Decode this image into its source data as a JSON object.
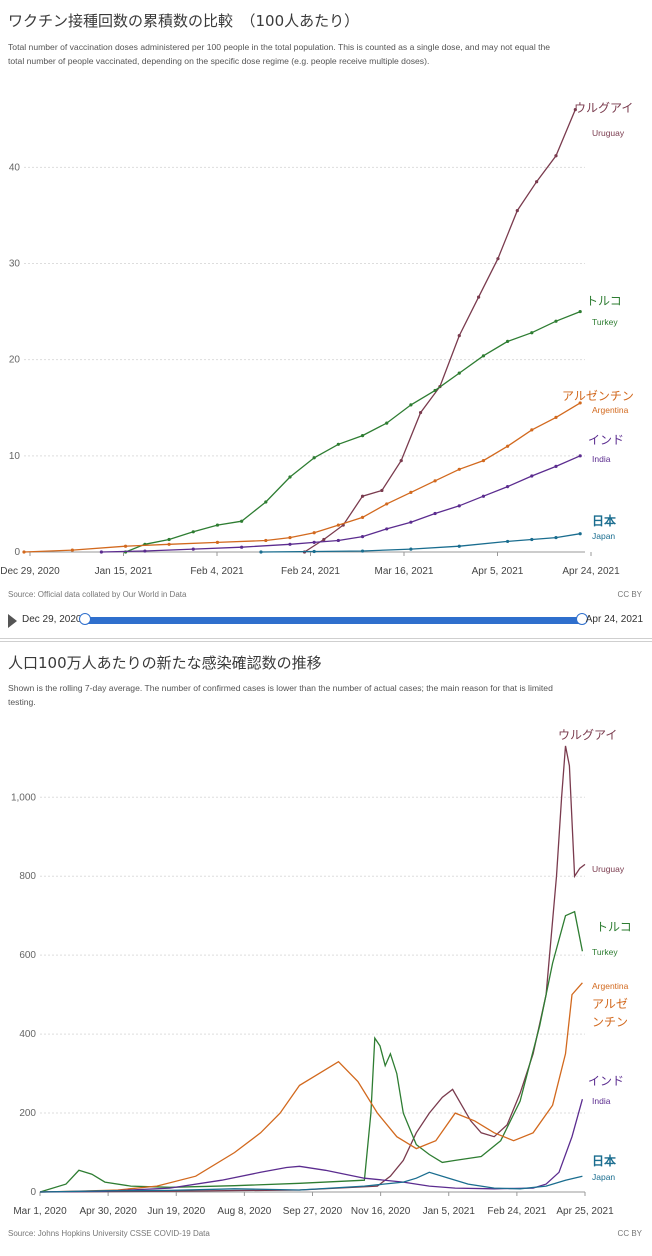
{
  "panel1": {
    "title": "ワクチン接種回数の累積数の比較　（100人あたり）",
    "subtitle": "Total number of vaccination doses administered per 100 people in the total population. This is counted as a single dose, and may not equal the total number of people vaccinated, depending on the specific dose regime (e.g. people receive multiple doses).",
    "source": "Source: Official data collated by Our World in Data",
    "license": "CC BY",
    "timeline": {
      "start": "Dec 29, 2020",
      "end": "Apr 24, 2021"
    }
  },
  "panel2": {
    "title": "人口100万人あたりの新たな感染確認数の推移",
    "subtitle": "Shown is the rolling 7-day average. The number of confirmed cases is lower than the number of actual cases; the main reason for that is limited testing.",
    "source": "Source: Johns Hopkins University CSSE COVID-19 Data",
    "license": "CC BY"
  },
  "colors": {
    "uruguay": "#7a3b4e",
    "turkey": "#2e7d32",
    "argentina": "#d2691e",
    "india": "#5b2c8f",
    "japan": "#1a6d8f",
    "timeline": "#2f6fcd"
  },
  "chart_data": [
    {
      "type": "line",
      "title": "ワクチン接種回数の累積数の比較　（100人あたり）",
      "x_ticks": [
        "Dec 29, 2020",
        "Jan 15, 2021",
        "Feb 4, 2021",
        "Feb 24, 2021",
        "Mar 16, 2021",
        "Apr 5, 2021",
        "Apr 24, 2021"
      ],
      "y_ticks": [
        "0",
        "10",
        "20",
        "30",
        "40"
      ],
      "ylim": [
        0,
        47
      ],
      "x_unit": "days since Dec 29, 2020",
      "xlim": [
        0,
        116
      ],
      "markers": true,
      "grid": true,
      "series": [
        {
          "key": "uruguay",
          "name": "Uruguay",
          "label_jp": "ウルグアイ",
          "x": [
            58,
            62,
            66,
            70,
            74,
            78,
            82,
            86,
            90,
            94,
            98,
            102,
            106,
            110,
            114
          ],
          "y": [
            0,
            1.3,
            2.8,
            5.8,
            6.4,
            9.5,
            14.5,
            17.2,
            22.5,
            26.5,
            30.5,
            35.5,
            38.5,
            41.2,
            46
          ]
        },
        {
          "key": "turkey",
          "name": "Turkey",
          "label_jp": "トルコ",
          "x": [
            21,
            25,
            30,
            35,
            40,
            45,
            50,
            55,
            60,
            65,
            70,
            75,
            80,
            85,
            90,
            95,
            100,
            105,
            110,
            115
          ],
          "y": [
            0,
            0.8,
            1.3,
            2.1,
            2.8,
            3.2,
            5.2,
            7.8,
            9.8,
            11.2,
            12.1,
            13.4,
            15.3,
            16.8,
            18.6,
            20.4,
            21.9,
            22.8,
            24,
            25
          ]
        },
        {
          "key": "argentina",
          "name": "Argentina",
          "label_jp": "アルゼンチン",
          "x": [
            0,
            10,
            21,
            30,
            40,
            50,
            55,
            60,
            65,
            70,
            75,
            80,
            85,
            90,
            95,
            100,
            105,
            110,
            115
          ],
          "y": [
            0,
            0.2,
            0.6,
            0.8,
            1,
            1.2,
            1.5,
            2,
            2.8,
            3.6,
            5,
            6.2,
            7.4,
            8.6,
            9.5,
            11,
            12.7,
            14,
            15.5
          ]
        },
        {
          "key": "india",
          "name": "India",
          "label_jp": "インド",
          "x": [
            16,
            25,
            35,
            45,
            55,
            60,
            65,
            70,
            75,
            80,
            85,
            90,
            95,
            100,
            105,
            110,
            115
          ],
          "y": [
            0,
            0.1,
            0.3,
            0.5,
            0.8,
            1,
            1.2,
            1.6,
            2.4,
            3.1,
            4,
            4.8,
            5.8,
            6.8,
            7.9,
            8.9,
            10
          ]
        },
        {
          "key": "japan",
          "name": "Japan",
          "label_jp": "日本",
          "x": [
            49,
            60,
            70,
            80,
            90,
            100,
            105,
            110,
            115
          ],
          "y": [
            0,
            0.05,
            0.1,
            0.3,
            0.6,
            1.1,
            1.3,
            1.5,
            1.9
          ]
        }
      ]
    },
    {
      "type": "line",
      "title": "人口100万人あたりの新たな感染確認数の推移",
      "x_ticks": [
        "Mar 1, 2020",
        "Apr 30, 2020",
        "Jun 19, 2020",
        "Aug 8, 2020",
        "Sep 27, 2020",
        "Nov 16, 2020",
        "Jan 5, 2021",
        "Feb 24, 2021",
        "Apr 25, 2021"
      ],
      "y_ticks": [
        "0",
        "200",
        "400",
        "600",
        "800",
        "1,000"
      ],
      "ylim": [
        0,
        1140
      ],
      "x_unit": "days since Mar 1, 2020",
      "xlim": [
        0,
        420
      ],
      "markers": false,
      "grid": true,
      "series": [
        {
          "key": "uruguay",
          "name": "Uruguay",
          "label_jp": "ウルグアイ",
          "x": [
            0,
            100,
            200,
            260,
            270,
            280,
            290,
            300,
            310,
            318,
            325,
            332,
            340,
            350,
            360,
            370,
            380,
            390,
            398,
            402,
            405,
            408,
            412,
            416,
            420
          ],
          "y": [
            0,
            2,
            5,
            15,
            40,
            80,
            150,
            200,
            240,
            260,
            220,
            180,
            150,
            140,
            170,
            250,
            350,
            500,
            800,
            1000,
            1130,
            1080,
            800,
            820,
            830
          ]
        },
        {
          "key": "turkey",
          "name": "Turkey",
          "label_jp": "トルコ",
          "x": [
            0,
            20,
            30,
            40,
            50,
            70,
            100,
            150,
            200,
            250,
            255,
            258,
            262,
            266,
            270,
            275,
            280,
            290,
            300,
            310,
            320,
            340,
            355,
            370,
            385,
            395,
            405,
            412,
            418
          ],
          "y": [
            0,
            20,
            55,
            45,
            25,
            15,
            12,
            16,
            22,
            30,
            200,
            390,
            370,
            320,
            350,
            300,
            200,
            120,
            95,
            75,
            80,
            90,
            130,
            230,
            420,
            580,
            700,
            710,
            610
          ]
        },
        {
          "key": "argentina",
          "name": "Argentina",
          "label_jp": "アルゼンチン",
          "x": [
            0,
            30,
            60,
            90,
            120,
            150,
            170,
            185,
            200,
            215,
            230,
            245,
            260,
            275,
            290,
            305,
            320,
            335,
            350,
            365,
            380,
            395,
            405,
            410,
            418
          ],
          "y": [
            0,
            2,
            5,
            15,
            40,
            100,
            150,
            200,
            270,
            300,
            330,
            280,
            200,
            140,
            110,
            130,
            200,
            180,
            150,
            130,
            150,
            220,
            350,
            500,
            530
          ]
        },
        {
          "key": "india",
          "name": "India",
          "label_jp": "インド",
          "x": [
            0,
            50,
            100,
            140,
            170,
            190,
            200,
            220,
            250,
            280,
            300,
            320,
            350,
            380,
            390,
            400,
            410,
            418
          ],
          "y": [
            0,
            2,
            10,
            30,
            50,
            62,
            65,
            55,
            35,
            25,
            15,
            10,
            8,
            10,
            20,
            50,
            140,
            235
          ]
        },
        {
          "key": "japan",
          "name": "Japan",
          "label_jp": "日本",
          "x": [
            0,
            50,
            100,
            150,
            200,
            250,
            280,
            290,
            300,
            315,
            330,
            350,
            370,
            390,
            405,
            418
          ],
          "y": [
            0,
            3,
            4,
            8,
            5,
            15,
            25,
            35,
            50,
            35,
            20,
            10,
            8,
            15,
            30,
            40
          ]
        }
      ]
    }
  ]
}
